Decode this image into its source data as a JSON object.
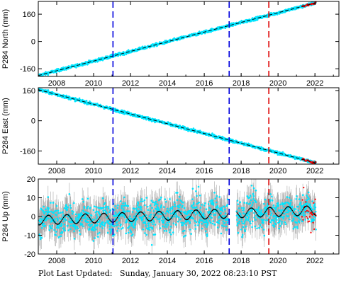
{
  "footer": {
    "label": "Plot Last Updated:",
    "timestamp": "Sunday, January 30, 2022 08:23:10 PST"
  },
  "colors": {
    "data": "#00e5ff",
    "model": "#000000",
    "errorbar": "#aaaaaa",
    "recent": "#ff0000",
    "event_blue": "#0000dd",
    "event_red": "#dd0000"
  },
  "chart_data": [
    {
      "type": "scatter",
      "station": "P284",
      "component": "North",
      "ylabel": "P284 North (mm)",
      "xlim": [
        2007.0,
        2023.3
      ],
      "ylim": [
        -205,
        235
      ],
      "xticks": [
        2008,
        2010,
        2012,
        2014,
        2016,
        2018,
        2020,
        2022
      ],
      "yticks": [
        -160,
        0,
        160
      ],
      "trend": {
        "x": [
          2007.0,
          2022.1
        ],
        "y": [
          -200,
          228
        ]
      },
      "event_lines": [
        {
          "x": 2011.05,
          "color": "blue"
        },
        {
          "x": 2017.35,
          "color": "blue"
        },
        {
          "x": 2019.5,
          "color": "red"
        }
      ]
    },
    {
      "type": "scatter",
      "station": "P284",
      "component": "East",
      "ylabel": "P284 East (mm)",
      "xlim": [
        2007.0,
        2023.3
      ],
      "ylim": [
        -230,
        175
      ],
      "xticks": [
        2008,
        2010,
        2012,
        2014,
        2016,
        2018,
        2020,
        2022
      ],
      "yticks": [
        -160,
        0,
        160
      ],
      "trend": {
        "x": [
          2007.0,
          2022.1
        ],
        "y": [
          165,
          -225
        ]
      },
      "event_lines": [
        {
          "x": 2011.05,
          "color": "blue"
        },
        {
          "x": 2017.35,
          "color": "blue"
        },
        {
          "x": 2019.5,
          "color": "red"
        }
      ]
    },
    {
      "type": "scatter",
      "station": "P284",
      "component": "Up",
      "ylabel": "P284 Up (mm)",
      "xlim": [
        2007.0,
        2023.3
      ],
      "ylim": [
        -20,
        20
      ],
      "xticks": [
        2008,
        2010,
        2012,
        2014,
        2016,
        2018,
        2020,
        2022
      ],
      "yticks": [
        -20,
        -10,
        0,
        10,
        20
      ],
      "seasonal_model": {
        "baseline": -2,
        "trend_per_year": 0.35,
        "amplitude": 2.5
      },
      "event_lines": [
        {
          "x": 2011.05,
          "color": "blue"
        },
        {
          "x": 2017.35,
          "color": "blue"
        },
        {
          "x": 2019.5,
          "color": "red"
        }
      ]
    }
  ]
}
